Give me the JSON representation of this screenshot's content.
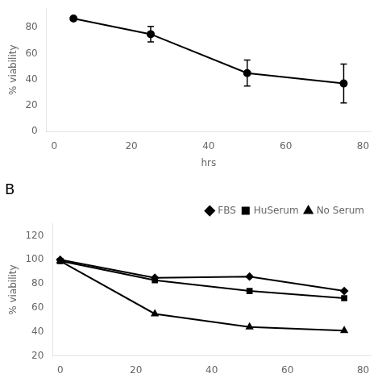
{
  "chart_data": [
    {
      "type": "line",
      "x": [
        5,
        25,
        50,
        75
      ],
      "values": [
        87,
        75,
        45,
        37
      ],
      "yerr": [
        0,
        6,
        10,
        15
      ],
      "color": "#000000",
      "marker": "circle",
      "xlabel": "hrs",
      "ylabel": "% viability",
      "xlim": [
        -2,
        82
      ],
      "ylim": [
        0,
        95
      ],
      "xticks": [
        0,
        20,
        40,
        60,
        80
      ],
      "yticks": [
        0,
        20,
        40,
        60,
        80
      ],
      "grid": false
    },
    {
      "type": "line",
      "annotations": [
        "B"
      ],
      "x": [
        0,
        25,
        50,
        75
      ],
      "series": [
        {
          "name": "FBS",
          "color": "#000000",
          "marker": "diamond",
          "values": [
            100,
            85,
            86,
            74
          ]
        },
        {
          "name": "HuSerum",
          "color": "#000000",
          "marker": "square",
          "values": [
            99,
            83,
            74,
            68
          ]
        },
        {
          "name": "No Serum",
          "color": "#000000",
          "marker": "triangle",
          "values": [
            99,
            55,
            44,
            41
          ]
        }
      ],
      "ylabel": "% viability",
      "xlim": [
        -2,
        82
      ],
      "ylim": [
        20,
        130
      ],
      "xticks": [
        0,
        20,
        40,
        60,
        80
      ],
      "yticks": [
        20,
        40,
        60,
        80,
        100,
        120
      ],
      "legend": "upper right",
      "grid": false
    }
  ]
}
